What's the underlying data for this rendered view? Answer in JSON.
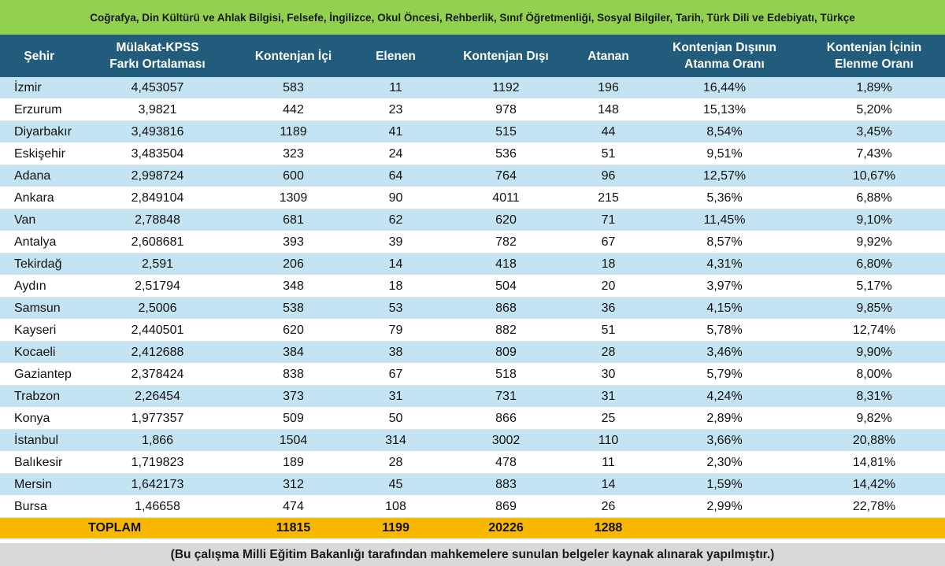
{
  "banner": "Coğrafya, Din Kültürü ve Ahlak Bilgisi, Felsefe, İngilizce, Okul Öncesi, Rehberlik, Sınıf Öğretmenliği, Sosyal Bilgiler, Tarih, Türk Dili ve Edebiyatı, Türkçe",
  "headers": [
    [
      "Şehir"
    ],
    [
      "Mülakat-KPSS",
      "Farkı Ortalaması"
    ],
    [
      "Kontenjan İçi"
    ],
    [
      "Elenen"
    ],
    [
      "Kontenjan Dışı"
    ],
    [
      "Atanan"
    ],
    [
      "Kontenjan Dışının",
      "Atanma Oranı"
    ],
    [
      "Kontenjan İçinin",
      "Elenme Oranı"
    ]
  ],
  "rows": [
    [
      "İzmir",
      "4,453057",
      "583",
      "11",
      "1192",
      "196",
      "16,44%",
      "1,89%"
    ],
    [
      "Erzurum",
      "3,9821",
      "442",
      "23",
      "978",
      "148",
      "15,13%",
      "5,20%"
    ],
    [
      "Diyarbakır",
      "3,493816",
      "1189",
      "41",
      "515",
      "44",
      "8,54%",
      "3,45%"
    ],
    [
      "Eskişehir",
      "3,483504",
      "323",
      "24",
      "536",
      "51",
      "9,51%",
      "7,43%"
    ],
    [
      "Adana",
      "2,998724",
      "600",
      "64",
      "764",
      "96",
      "12,57%",
      "10,67%"
    ],
    [
      "Ankara",
      "2,849104",
      "1309",
      "90",
      "4011",
      "215",
      "5,36%",
      "6,88%"
    ],
    [
      "Van",
      "2,78848",
      "681",
      "62",
      "620",
      "71",
      "11,45%",
      "9,10%"
    ],
    [
      "Antalya",
      "2,608681",
      "393",
      "39",
      "782",
      "67",
      "8,57%",
      "9,92%"
    ],
    [
      "Tekirdağ",
      "2,591",
      "206",
      "14",
      "418",
      "18",
      "4,31%",
      "6,80%"
    ],
    [
      "Aydın",
      "2,51794",
      "348",
      "18",
      "504",
      "20",
      "3,97%",
      "5,17%"
    ],
    [
      "Samsun",
      "2,5006",
      "538",
      "53",
      "868",
      "36",
      "4,15%",
      "9,85%"
    ],
    [
      "Kayseri",
      "2,440501",
      "620",
      "79",
      "882",
      "51",
      "5,78%",
      "12,74%"
    ],
    [
      "Kocaeli",
      "2,412688",
      "384",
      "38",
      "809",
      "28",
      "3,46%",
      "9,90%"
    ],
    [
      "Gaziantep",
      "2,378424",
      "838",
      "67",
      "518",
      "30",
      "5,79%",
      "8,00%"
    ],
    [
      "Trabzon",
      "2,26454",
      "373",
      "31",
      "731",
      "31",
      "4,24%",
      "8,31%"
    ],
    [
      "Konya",
      "1,977357",
      "509",
      "50",
      "866",
      "25",
      "2,89%",
      "9,82%"
    ],
    [
      "İstanbul",
      "1,866",
      "1504",
      "314",
      "3002",
      "110",
      "3,66%",
      "20,88%"
    ],
    [
      "Balıkesir",
      "1,719823",
      "189",
      "28",
      "478",
      "11",
      "2,30%",
      "14,81%"
    ],
    [
      "Mersin",
      "1,642173",
      "312",
      "45",
      "883",
      "14",
      "1,59%",
      "14,42%"
    ],
    [
      "Bursa",
      "1,46658",
      "474",
      "108",
      "869",
      "26",
      "2,99%",
      "22,78%"
    ]
  ],
  "total": {
    "label": "TOPLAM",
    "kontenjan_ici": "11815",
    "elenen": "1199",
    "kontenjan_disi": "20226",
    "atanan": "1288"
  },
  "footer": "(Bu çalışma Milli Eğitim Bakanlığı tarafından mahkemelere sunulan belgeler kaynak alınarak yapılmıştır.)",
  "colors": {
    "banner_bg": "#92d050",
    "header_bg": "#215c7c",
    "row_stripe": "#c5e4f3",
    "total_bg": "#f9b800",
    "footer_bg": "#d9d9d9"
  }
}
